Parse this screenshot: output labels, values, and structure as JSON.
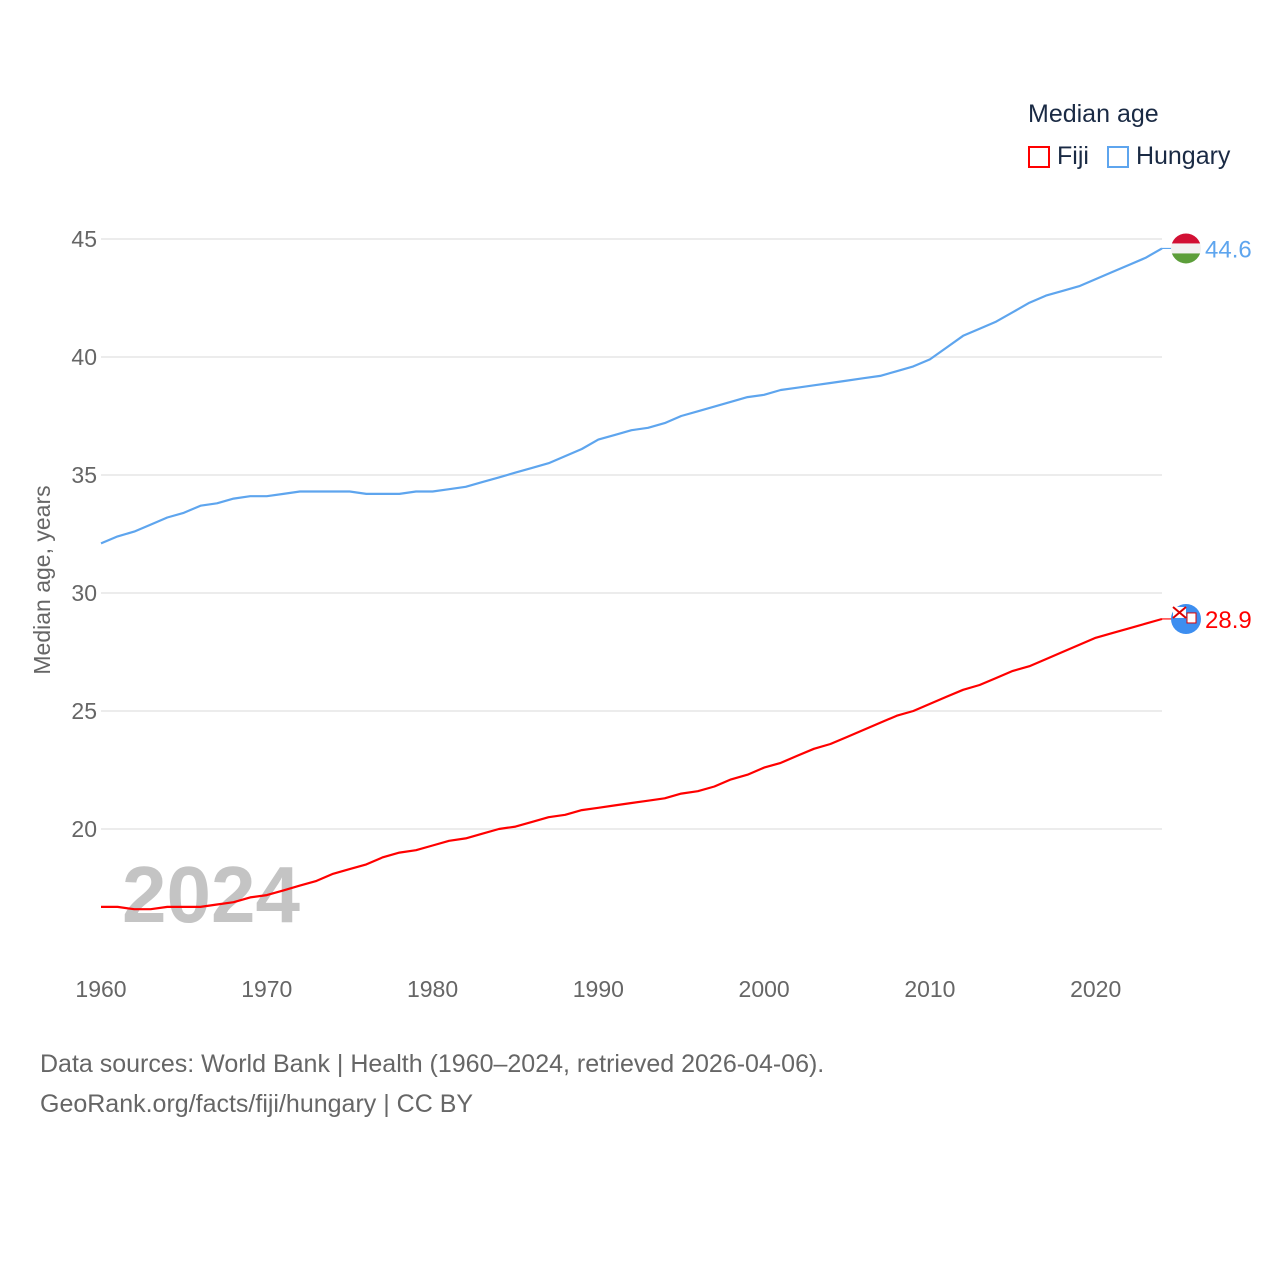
{
  "chart_data": {
    "type": "line",
    "title": "Median age",
    "ylabel": "Median age, years",
    "xlabel": "",
    "xlim": [
      1960,
      2024
    ],
    "ylim": [
      15.4,
      47
    ],
    "yticks": [
      20,
      25,
      30,
      35,
      40,
      45
    ],
    "xticks": [
      1960,
      1970,
      1980,
      1990,
      2000,
      2010,
      2020
    ],
    "grid": true,
    "legend_placement": "top-right",
    "year_watermark": "2024",
    "x": [
      1960,
      1961,
      1962,
      1963,
      1964,
      1965,
      1966,
      1967,
      1968,
      1969,
      1970,
      1971,
      1972,
      1973,
      1974,
      1975,
      1976,
      1977,
      1978,
      1979,
      1980,
      1981,
      1982,
      1983,
      1984,
      1985,
      1986,
      1987,
      1988,
      1989,
      1990,
      1991,
      1992,
      1993,
      1994,
      1995,
      1996,
      1997,
      1998,
      1999,
      2000,
      2001,
      2002,
      2003,
      2004,
      2005,
      2006,
      2007,
      2008,
      2009,
      2010,
      2011,
      2012,
      2013,
      2014,
      2015,
      2016,
      2017,
      2018,
      2019,
      2020,
      2021,
      2022,
      2023,
      2024
    ],
    "series": [
      {
        "name": "Fiji",
        "color": "#ff0000",
        "end_label": "28.9",
        "values": [
          16.7,
          16.7,
          16.6,
          16.6,
          16.7,
          16.7,
          16.7,
          16.8,
          16.9,
          17.1,
          17.2,
          17.4,
          17.6,
          17.8,
          18.1,
          18.3,
          18.5,
          18.8,
          19.0,
          19.1,
          19.3,
          19.5,
          19.6,
          19.8,
          20.0,
          20.1,
          20.3,
          20.5,
          20.6,
          20.8,
          20.9,
          21.0,
          21.1,
          21.2,
          21.3,
          21.5,
          21.6,
          21.8,
          22.1,
          22.3,
          22.6,
          22.8,
          23.1,
          23.4,
          23.6,
          23.9,
          24.2,
          24.5,
          24.8,
          25.0,
          25.3,
          25.6,
          25.9,
          26.1,
          26.4,
          26.7,
          26.9,
          27.2,
          27.5,
          27.8,
          28.1,
          28.3,
          28.5,
          28.7,
          28.9
        ]
      },
      {
        "name": "Hungary",
        "color": "#5ea5ee",
        "end_label": "44.6",
        "values": [
          32.1,
          32.4,
          32.6,
          32.9,
          33.2,
          33.4,
          33.7,
          33.8,
          34.0,
          34.1,
          34.1,
          34.2,
          34.3,
          34.3,
          34.3,
          34.3,
          34.2,
          34.2,
          34.2,
          34.3,
          34.3,
          34.4,
          34.5,
          34.7,
          34.9,
          35.1,
          35.3,
          35.5,
          35.8,
          36.1,
          36.5,
          36.7,
          36.9,
          37.0,
          37.2,
          37.5,
          37.7,
          37.9,
          38.1,
          38.3,
          38.4,
          38.6,
          38.7,
          38.8,
          38.9,
          39.0,
          39.1,
          39.2,
          39.4,
          39.6,
          39.9,
          40.4,
          40.9,
          41.2,
          41.5,
          41.9,
          42.3,
          42.6,
          42.8,
          43.0,
          43.3,
          43.6,
          43.9,
          44.2,
          44.6
        ]
      }
    ]
  },
  "footer": {
    "line1": "Data sources: World Bank | Health (1960–2024, retrieved 2026-04-06).",
    "line2": "GeoRank.org/facts/fiji/hungary | CC BY"
  }
}
